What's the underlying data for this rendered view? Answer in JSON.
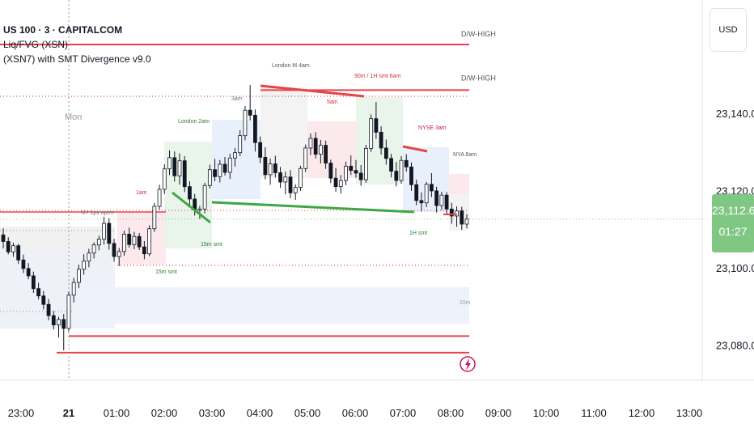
{
  "header": {
    "symbol": "US 100 · 3 · CAPITALCOM",
    "indicator_1": "Liq/FVG (XSN)",
    "indicator_2": "(XSN7) with SMT Divergence v9.0"
  },
  "currency_button": "USD",
  "price_tag": {
    "price": "23,112.6",
    "countdown": "01:27"
  },
  "colors": {
    "accent_red": "#e8424a",
    "accent_green": "#3da843",
    "label_green": "#2e7d32",
    "label_red": "#d32f2f",
    "current_price_bg": "#81c784"
  },
  "icons": {
    "lightning": "lightning-icon"
  },
  "chart_data": {
    "type": "candlestick",
    "x_ticks": [
      "23:00",
      "21",
      "01:00",
      "02:00",
      "03:00",
      "04:00",
      "05:00",
      "06:00",
      "07:00",
      "08:00",
      "09:00",
      "10:00",
      "11:00",
      "12:00",
      "13:00"
    ],
    "y_ticks": [
      "23,080.0",
      "23,100.0",
      "23,120.0",
      "23,140.0"
    ],
    "y_tick_values": [
      23080,
      23100,
      23120,
      23140
    ],
    "ylim": [
      23074,
      23162
    ],
    "current_price": 23112.6,
    "grid": false,
    "session_labels": [
      "Mon"
    ],
    "level_lines": [
      {
        "label": "D/W-HIGH",
        "price": 23157.8
      },
      {
        "label": "D/W-HIGH",
        "price": 23146.0
      },
      {
        "label": "",
        "price": 23082.3
      },
      {
        "label": "",
        "price": 23078.0
      }
    ],
    "annotations": [
      "London 2am",
      "London M 4am",
      "3am",
      "5am",
      "90m / 1H smt 6am",
      "NYSE 3am",
      "NYA 8am",
      "15m",
      "1am",
      "15m smt",
      "15m smt",
      "1H smt",
      "NY 1pv open"
    ],
    "candles": [
      [
        23108.5,
        23110.2,
        23105.0,
        23106.8
      ],
      [
        23106.8,
        23107.9,
        23103.5,
        23104.1
      ],
      [
        23104.1,
        23106.5,
        23102.8,
        23105.7
      ],
      [
        23105.7,
        23106.2,
        23101.0,
        23102.0
      ],
      [
        23102.0,
        23103.4,
        23098.6,
        23099.8
      ],
      [
        23099.8,
        23101.2,
        23097.0,
        23097.9
      ],
      [
        23097.9,
        23099.0,
        23093.5,
        23094.6
      ],
      [
        23094.6,
        23096.1,
        23091.8,
        23092.7
      ],
      [
        23092.7,
        23094.0,
        23089.2,
        23090.5
      ],
      [
        23090.5,
        23091.9,
        23086.4,
        23087.6
      ],
      [
        23087.6,
        23088.8,
        23084.0,
        23085.2
      ],
      [
        23085.2,
        23087.3,
        23081.9,
        23086.6
      ],
      [
        23086.6,
        23088.0,
        23078.6,
        23084.3
      ],
      [
        23084.3,
        23093.8,
        23083.5,
        23092.9
      ],
      [
        23092.9,
        23097.4,
        23091.0,
        23096.2
      ],
      [
        23096.2,
        23100.8,
        23094.7,
        23099.6
      ],
      [
        23099.6,
        23103.5,
        23098.2,
        23101.7
      ],
      [
        23101.7,
        23104.9,
        23100.1,
        23103.8
      ],
      [
        23103.8,
        23106.6,
        23102.4,
        23105.9
      ],
      [
        23105.9,
        23108.3,
        23104.5,
        23107.4
      ],
      [
        23107.4,
        23113.2,
        23106.0,
        23111.5
      ],
      [
        23111.5,
        23112.8,
        23104.7,
        23106.3
      ],
      [
        23106.3,
        23107.5,
        23101.6,
        23102.9
      ],
      [
        23102.9,
        23105.1,
        23100.4,
        23104.2
      ],
      [
        23104.2,
        23109.6,
        23103.1,
        23108.7
      ],
      [
        23108.7,
        23110.4,
        23105.2,
        23106.0
      ],
      [
        23106.0,
        23109.3,
        23104.8,
        23108.1
      ],
      [
        23108.1,
        23109.0,
        23104.6,
        23105.4
      ],
      [
        23105.4,
        23106.9,
        23102.2,
        23103.6
      ],
      [
        23103.6,
        23111.0,
        23103.0,
        23110.1
      ],
      [
        23110.1,
        23116.8,
        23109.3,
        23115.9
      ],
      [
        23115.9,
        23121.5,
        23115.0,
        23120.3
      ],
      [
        23120.3,
        23126.8,
        23119.1,
        23125.6
      ],
      [
        23125.6,
        23130.4,
        23124.0,
        23128.5
      ],
      [
        23128.5,
        23130.1,
        23122.3,
        23123.8
      ],
      [
        23123.8,
        23129.6,
        23121.5,
        23127.7
      ],
      [
        23127.7,
        23128.9,
        23119.6,
        23121.0
      ],
      [
        23121.0,
        23122.4,
        23116.3,
        23117.8
      ],
      [
        23117.8,
        23119.1,
        23113.5,
        23114.9
      ],
      [
        23114.9,
        23116.0,
        23112.6,
        23115.2
      ],
      [
        23115.2,
        23122.0,
        23114.1,
        23121.3
      ],
      [
        23121.3,
        23126.7,
        23120.5,
        23125.4
      ],
      [
        23125.4,
        23128.2,
        23122.4,
        23123.6
      ],
      [
        23123.6,
        23127.9,
        23122.1,
        23126.8
      ],
      [
        23126.8,
        23128.7,
        23123.9,
        23124.7
      ],
      [
        23124.7,
        23129.5,
        23123.0,
        23128.4
      ],
      [
        23128.4,
        23131.0,
        23126.2,
        23129.8
      ],
      [
        23129.8,
        23135.6,
        23128.9,
        23134.2
      ],
      [
        23134.2,
        23141.9,
        23133.0,
        23140.8
      ],
      [
        23140.8,
        23147.3,
        23138.2,
        23139.5
      ],
      [
        23139.5,
        23141.0,
        23130.1,
        23132.4
      ],
      [
        23132.4,
        23134.0,
        23127.1,
        23128.6
      ],
      [
        23128.6,
        23131.2,
        23122.9,
        23124.1
      ],
      [
        23124.1,
        23128.3,
        23121.5,
        23126.9
      ],
      [
        23126.9,
        23129.0,
        23123.4,
        23124.6
      ],
      [
        23124.6,
        23126.1,
        23120.7,
        23122.2
      ],
      [
        23122.2,
        23124.9,
        23119.0,
        23123.5
      ],
      [
        23123.5,
        23125.3,
        23118.0,
        23119.4
      ],
      [
        23119.4,
        23121.6,
        23117.6,
        23120.8
      ],
      [
        23120.8,
        23126.4,
        23119.9,
        23125.7
      ],
      [
        23125.7,
        23131.9,
        23124.8,
        23131.0
      ],
      [
        23131.0,
        23134.8,
        23129.2,
        23133.5
      ],
      [
        23133.5,
        23135.1,
        23128.3,
        23129.4
      ],
      [
        23129.4,
        23133.1,
        23127.0,
        23131.7
      ],
      [
        23131.7,
        23132.9,
        23125.6,
        23127.1
      ],
      [
        23127.1,
        23128.0,
        23121.9,
        23123.2
      ],
      [
        23123.2,
        23125.8,
        23119.7,
        23121.0
      ],
      [
        23121.0,
        23124.0,
        23119.2,
        23122.6
      ],
      [
        23122.6,
        23127.5,
        23121.4,
        23126.3
      ],
      [
        23126.3,
        23129.1,
        23124.0,
        23125.2
      ],
      [
        23125.2,
        23127.9,
        23123.3,
        23124.5
      ],
      [
        23124.5,
        23126.6,
        23121.2,
        23122.8
      ],
      [
        23122.8,
        23131.8,
        23122.0,
        23130.9
      ],
      [
        23130.9,
        23139.7,
        23130.0,
        23138.6
      ],
      [
        23138.6,
        23142.9,
        23133.4,
        23135.1
      ],
      [
        23135.1,
        23136.6,
        23129.3,
        23131.0
      ],
      [
        23131.0,
        23133.2,
        23126.7,
        23128.3
      ],
      [
        23128.3,
        23129.5,
        23123.4,
        23125.0
      ],
      [
        23125.0,
        23127.4,
        23121.1,
        23122.6
      ],
      [
        23122.6,
        23128.9,
        23121.8,
        23127.8
      ],
      [
        23127.8,
        23129.4,
        23124.9,
        23126.1
      ],
      [
        23126.1,
        23127.3,
        23119.9,
        23121.5
      ],
      [
        23121.5,
        23122.8,
        23116.2,
        23117.4
      ],
      [
        23117.4,
        23119.5,
        23114.6,
        23116.8
      ],
      [
        23116.8,
        23122.2,
        23115.7,
        23121.6
      ],
      [
        23121.6,
        23124.5,
        23118.3,
        23119.9
      ],
      [
        23119.9,
        23121.0,
        23114.3,
        23116.1
      ],
      [
        23116.1,
        23119.7,
        23115.0,
        23118.8
      ],
      [
        23118.8,
        23119.6,
        23113.6,
        23115.2
      ],
      [
        23115.2,
        23116.8,
        23111.4,
        23113.4
      ],
      [
        23113.4,
        23115.9,
        23110.6,
        23114.7
      ],
      [
        23114.7,
        23115.8,
        23109.8,
        23111.3
      ],
      [
        23111.3,
        23113.9,
        23110.2,
        23112.6
      ]
    ]
  }
}
